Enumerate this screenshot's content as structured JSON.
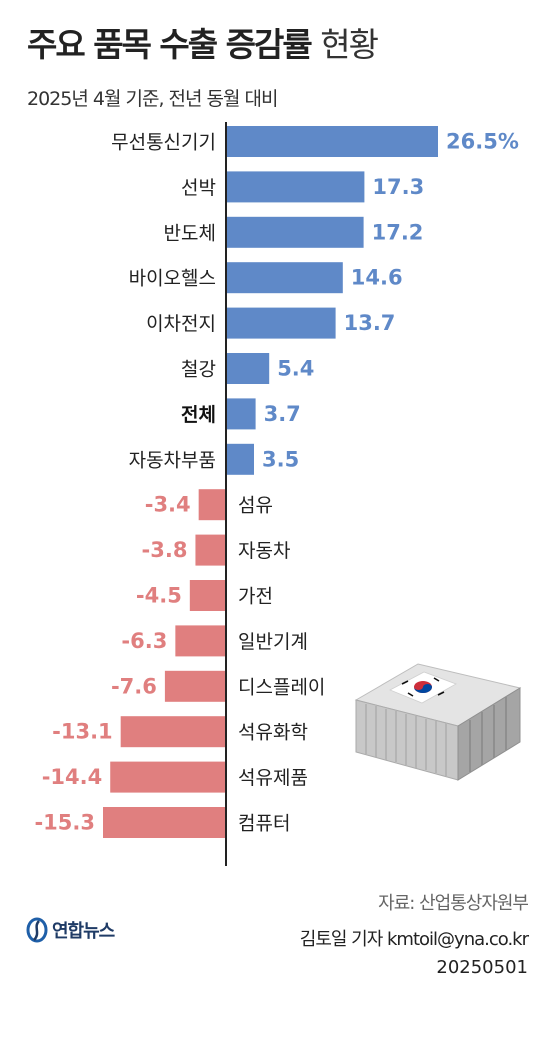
{
  "title": {
    "main": "주요 품목 수출 증감률",
    "suffix": "현황"
  },
  "subtitle": "2025년 4월 기준, 전년 동월 대비",
  "colors": {
    "positive": "#5f89c8",
    "negative": "#e07f7f",
    "axis": "#222222",
    "bold_label": "#111111"
  },
  "chart_data": {
    "type": "bar",
    "orientation": "horizontal",
    "categories": [
      "무선통신기기",
      "선박",
      "반도체",
      "바이오헬스",
      "이차전지",
      "철강",
      "전체",
      "자동차부품",
      "섬유",
      "자동차",
      "가전",
      "일반기계",
      "디스플레이",
      "석유화학",
      "석유제품",
      "컴퓨터"
    ],
    "values": [
      26.5,
      17.3,
      17.2,
      14.6,
      13.7,
      5.4,
      3.7,
      3.5,
      -3.4,
      -3.8,
      -4.5,
      -6.3,
      -7.6,
      -13.1,
      -14.4,
      -15.3
    ],
    "value_labels": [
      "26.5%",
      "17.3",
      "17.2",
      "14.6",
      "13.7",
      "5.4",
      "3.7",
      "3.5",
      "-3.4",
      "-3.8",
      "-4.5",
      "-6.3",
      "-7.6",
      "-13.1",
      "-14.4",
      "-15.3"
    ],
    "bold_category": "전체",
    "unit": "%",
    "xlim": [
      -15.3,
      26.5
    ],
    "grid": false,
    "legend": "none"
  },
  "footer": {
    "source": "자료: 산업통상자원부",
    "author": "김토일 기자 kmtoil@yna.co.kr",
    "date": "20250501",
    "logo_text": "연합뉴스"
  },
  "icons": {
    "illustration": "shipping-container-icon",
    "flag": "korean-flag-icon",
    "logo": "yonhap-logo-icon"
  }
}
